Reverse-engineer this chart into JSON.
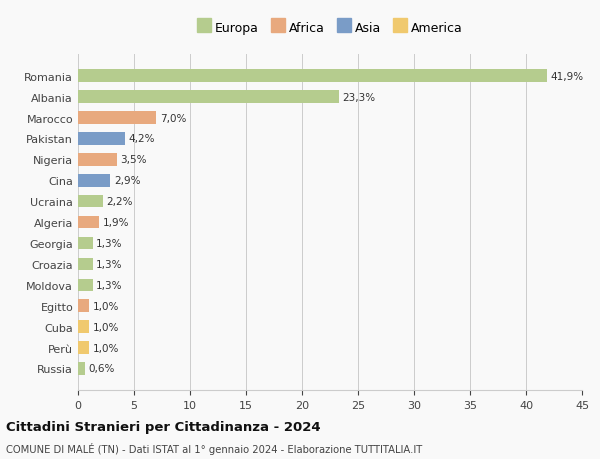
{
  "countries": [
    "Romania",
    "Albania",
    "Marocco",
    "Pakistan",
    "Nigeria",
    "Cina",
    "Ucraina",
    "Algeria",
    "Georgia",
    "Croazia",
    "Moldova",
    "Egitto",
    "Cuba",
    "Perù",
    "Russia"
  ],
  "values": [
    41.9,
    23.3,
    7.0,
    4.2,
    3.5,
    2.9,
    2.2,
    1.9,
    1.3,
    1.3,
    1.3,
    1.0,
    1.0,
    1.0,
    0.6
  ],
  "labels": [
    "41,9%",
    "23,3%",
    "7,0%",
    "4,2%",
    "3,5%",
    "2,9%",
    "2,2%",
    "1,9%",
    "1,3%",
    "1,3%",
    "1,3%",
    "1,0%",
    "1,0%",
    "1,0%",
    "0,6%"
  ],
  "continents": [
    "Europa",
    "Europa",
    "Africa",
    "Asia",
    "Africa",
    "Asia",
    "Europa",
    "Africa",
    "Europa",
    "Europa",
    "Europa",
    "Africa",
    "America",
    "America",
    "Europa"
  ],
  "colors": {
    "Europa": "#b5cc8e",
    "Africa": "#e8a97e",
    "Asia": "#7a9cc7",
    "America": "#f0c96e"
  },
  "legend_order": [
    "Europa",
    "Africa",
    "Asia",
    "America"
  ],
  "xlim": [
    0,
    45
  ],
  "xticks": [
    0,
    5,
    10,
    15,
    20,
    25,
    30,
    35,
    40,
    45
  ],
  "title": "Cittadini Stranieri per Cittadinanza - 2024",
  "subtitle": "COMUNE DI MALÉ (TN) - Dati ISTAT al 1° gennaio 2024 - Elaborazione TUTTITALIA.IT",
  "bg_color": "#f9f9f9",
  "grid_color": "#cccccc",
  "bar_height": 0.6
}
